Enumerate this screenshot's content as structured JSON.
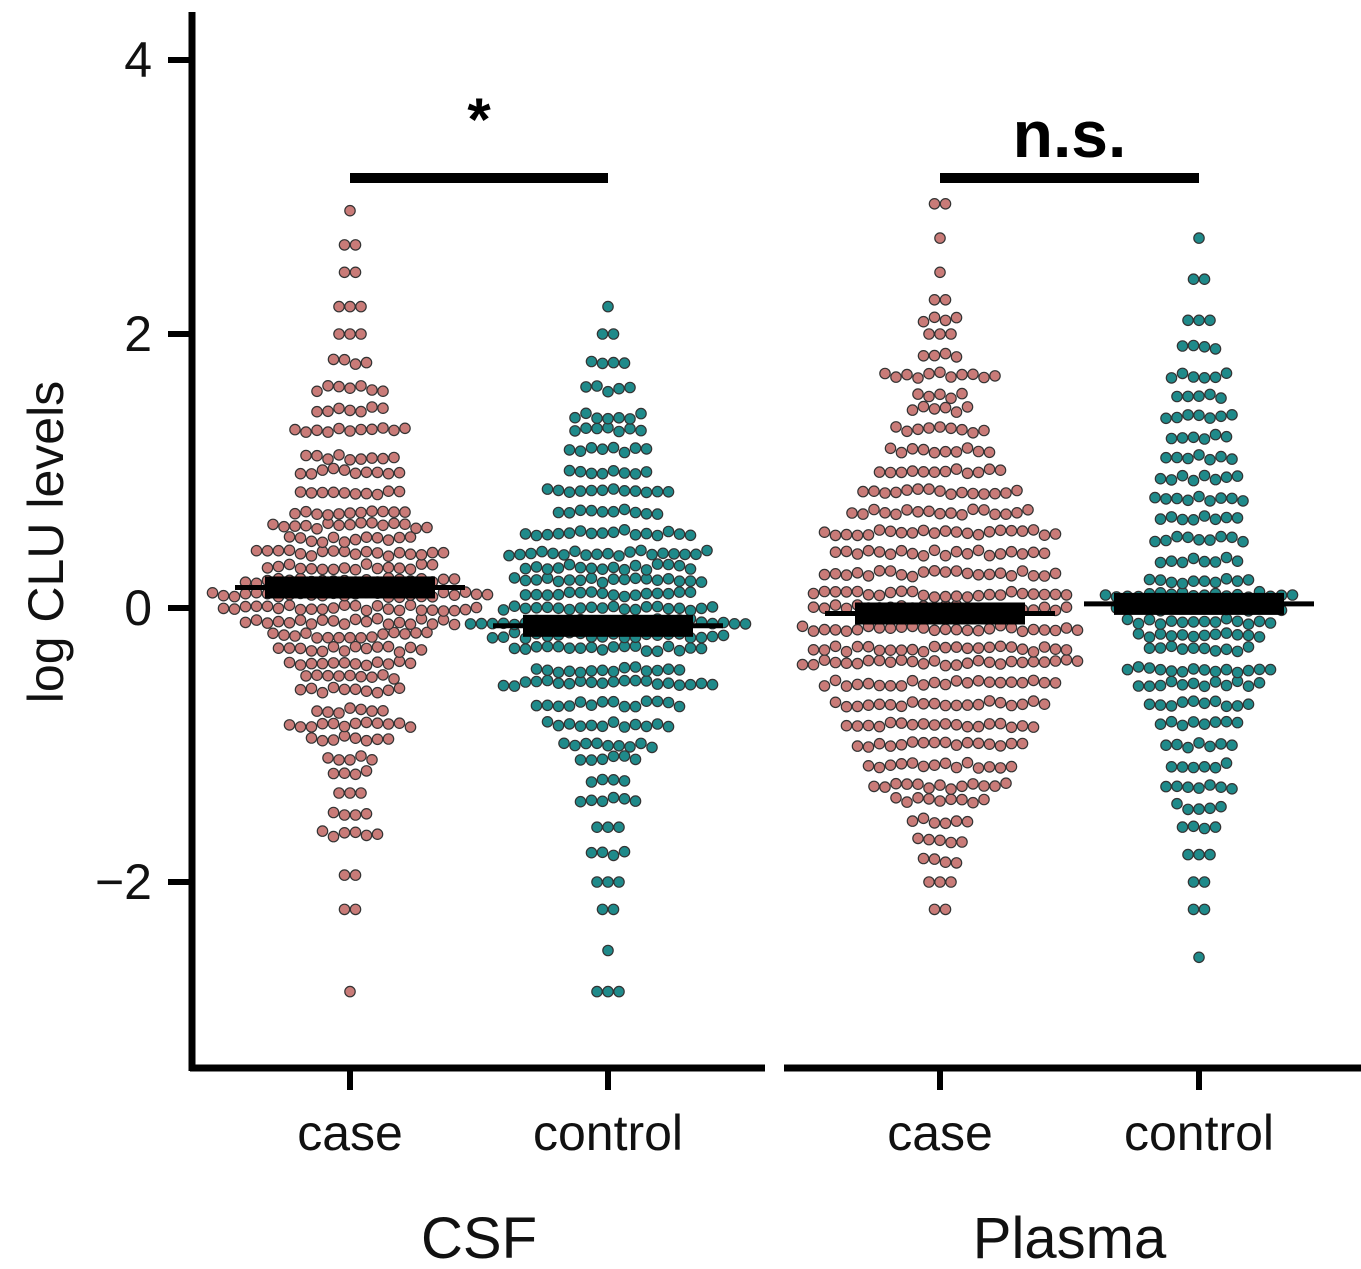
{
  "chart_data": {
    "type": "scatter",
    "subtype": "beeswarm",
    "ylabel": "log CLU levels",
    "ylim": [
      -3.1,
      4.3
    ],
    "yticks": [
      {
        "value": 4,
        "label": "4"
      },
      {
        "value": 2,
        "label": "2"
      },
      {
        "value": 0,
        "label": "0"
      },
      {
        "value": -2,
        "label": "−2"
      }
    ],
    "colors": {
      "case": "#c97b78",
      "control": "#1f8a8a",
      "outline": "#333333"
    },
    "panels": [
      {
        "name": "CSF",
        "significance": "*",
        "groups": [
          {
            "category": "case",
            "mean": 0.15,
            "min": -2.8,
            "max": 2.9,
            "density": [
              [
                -2.8,
                1
              ],
              [
                -2.2,
                2
              ],
              [
                -1.95,
                2
              ],
              [
                -1.65,
                6
              ],
              [
                -1.5,
                4
              ],
              [
                -1.35,
                3
              ],
              [
                -1.2,
                4
              ],
              [
                -1.1,
                5
              ],
              [
                -0.95,
                8
              ],
              [
                -0.85,
                12
              ],
              [
                -0.75,
                7
              ],
              [
                -0.6,
                10
              ],
              [
                -0.5,
                9
              ],
              [
                -0.4,
                12
              ],
              [
                -0.3,
                14
              ],
              [
                -0.2,
                15
              ],
              [
                -0.1,
                20
              ],
              [
                0,
                24
              ],
              [
                0.1,
                26
              ],
              [
                0.2,
                20
              ],
              [
                0.3,
                16
              ],
              [
                0.4,
                18
              ],
              [
                0.5,
                12
              ],
              [
                0.6,
                15
              ],
              [
                0.7,
                11
              ],
              [
                0.85,
                10
              ],
              [
                1.0,
                10
              ],
              [
                1.1,
                9
              ],
              [
                1.3,
                11
              ],
              [
                1.45,
                7
              ],
              [
                1.6,
                7
              ],
              [
                1.8,
                4
              ],
              [
                2.0,
                3
              ],
              [
                2.2,
                3
              ],
              [
                2.45,
                2
              ],
              [
                2.65,
                2
              ],
              [
                2.9,
                1
              ]
            ]
          },
          {
            "category": "control",
            "mean": -0.13,
            "min": -2.8,
            "max": 2.2,
            "density": [
              [
                -2.8,
                3
              ],
              [
                -2.5,
                1
              ],
              [
                -2.2,
                2
              ],
              [
                -2.0,
                3
              ],
              [
                -1.8,
                4
              ],
              [
                -1.6,
                3
              ],
              [
                -1.4,
                6
              ],
              [
                -1.25,
                4
              ],
              [
                -1.1,
                6
              ],
              [
                -1.0,
                9
              ],
              [
                -0.85,
                12
              ],
              [
                -0.7,
                14
              ],
              [
                -0.55,
                20
              ],
              [
                -0.45,
                14
              ],
              [
                -0.3,
                18
              ],
              [
                -0.2,
                22
              ],
              [
                -0.1,
                26
              ],
              [
                0,
                20
              ],
              [
                0.1,
                16
              ],
              [
                0.2,
                18
              ],
              [
                0.3,
                16
              ],
              [
                0.4,
                19
              ],
              [
                0.55,
                16
              ],
              [
                0.7,
                10
              ],
              [
                0.85,
                12
              ],
              [
                1.0,
                8
              ],
              [
                1.15,
                8
              ],
              [
                1.3,
                7
              ],
              [
                1.4,
                7
              ],
              [
                1.6,
                5
              ],
              [
                1.8,
                4
              ],
              [
                2.0,
                2
              ],
              [
                2.2,
                1
              ]
            ]
          }
        ]
      },
      {
        "name": "Plasma",
        "significance": "n.s.",
        "groups": [
          {
            "category": "case",
            "mean": -0.04,
            "min": -2.2,
            "max": 3.0,
            "density": [
              [
                -2.2,
                2
              ],
              [
                -2.0,
                3
              ],
              [
                -1.85,
                4
              ],
              [
                -1.7,
                5
              ],
              [
                -1.55,
                6
              ],
              [
                -1.4,
                9
              ],
              [
                -1.3,
                13
              ],
              [
                -1.15,
                14
              ],
              [
                -1.0,
                16
              ],
              [
                -0.85,
                18
              ],
              [
                -0.7,
                20
              ],
              [
                -0.55,
                22
              ],
              [
                -0.4,
                26
              ],
              [
                -0.3,
                24
              ],
              [
                -0.15,
                26
              ],
              [
                0,
                24
              ],
              [
                0.1,
                24
              ],
              [
                0.25,
                22
              ],
              [
                0.4,
                20
              ],
              [
                0.55,
                22
              ],
              [
                0.7,
                17
              ],
              [
                0.85,
                15
              ],
              [
                1.0,
                12
              ],
              [
                1.15,
                10
              ],
              [
                1.3,
                9
              ],
              [
                1.45,
                6
              ],
              [
                1.55,
                5
              ],
              [
                1.7,
                11
              ],
              [
                1.85,
                4
              ],
              [
                2.0,
                3
              ],
              [
                2.1,
                4
              ],
              [
                2.25,
                2
              ],
              [
                2.45,
                1
              ],
              [
                2.7,
                1
              ],
              [
                2.95,
                2
              ]
            ]
          },
          {
            "category": "control",
            "mean": 0.03,
            "min": -2.55,
            "max": 2.7,
            "density": [
              [
                -2.55,
                1
              ],
              [
                -2.2,
                2
              ],
              [
                -2.0,
                2
              ],
              [
                -1.8,
                3
              ],
              [
                -1.6,
                4
              ],
              [
                -1.45,
                5
              ],
              [
                -1.3,
                7
              ],
              [
                -1.15,
                6
              ],
              [
                -1.0,
                7
              ],
              [
                -0.85,
                8
              ],
              [
                -0.7,
                10
              ],
              [
                -0.55,
                12
              ],
              [
                -0.45,
                14
              ],
              [
                -0.3,
                10
              ],
              [
                -0.2,
                12
              ],
              [
                -0.1,
                14
              ],
              [
                0,
                16
              ],
              [
                0.1,
                18
              ],
              [
                0.2,
                10
              ],
              [
                0.35,
                8
              ],
              [
                0.5,
                9
              ],
              [
                0.65,
                8
              ],
              [
                0.8,
                9
              ],
              [
                0.95,
                8
              ],
              [
                1.1,
                7
              ],
              [
                1.25,
                6
              ],
              [
                1.4,
                7
              ],
              [
                1.55,
                5
              ],
              [
                1.7,
                6
              ],
              [
                1.9,
                4
              ],
              [
                2.1,
                3
              ],
              [
                2.4,
                2
              ],
              [
                2.7,
                1
              ]
            ]
          }
        ]
      }
    ]
  }
}
